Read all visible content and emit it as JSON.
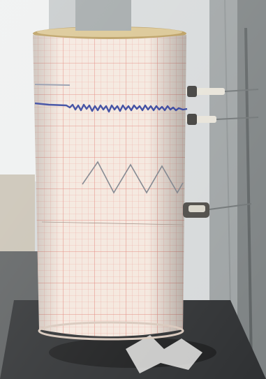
{
  "photo": {
    "subject": "seismograph-drum-recorder",
    "colors": {
      "paper": "#f3e6dc",
      "grid": "#e98f86",
      "trace_blue": "#2d3d9a",
      "trace_gray": "#8a8f98",
      "metal": "#b9b7ad",
      "background": "#d8dbdc",
      "base": "#3a3c3e"
    }
  }
}
